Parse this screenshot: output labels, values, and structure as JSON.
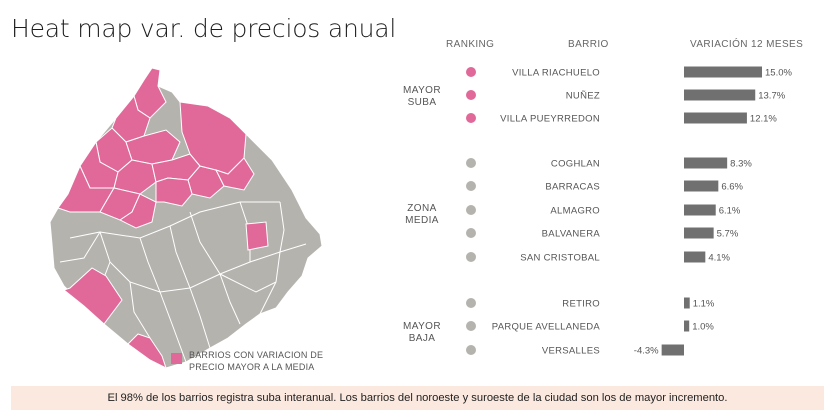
{
  "title": "Heat map var. de precios anual",
  "headers": {
    "ranking": "RANKING",
    "barrio": "BARRIO",
    "variacion": "VARIACIÓN 12 MESES"
  },
  "groups": [
    {
      "label_line1": "MAYOR",
      "label_line2": "SUBA"
    },
    {
      "label_line1": "ZONA",
      "label_line2": "MEDIA"
    },
    {
      "label_line1": "MAYOR",
      "label_line2": "BAJA"
    }
  ],
  "legend": {
    "text": "BARRIOS CON VARIACION DE PRECIO MAYOR A LA MEDIA"
  },
  "footer": "El 98% de los barrios registra suba interanual. Los barrios del noroeste y suroeste de la ciudad son los de mayor incremento.",
  "colors": {
    "highlight": "#e0699a",
    "neutral": "#b5b3ae",
    "bar": "#707070",
    "footer_bg": "#fbe9df"
  },
  "chart_data": {
    "type": "bar",
    "orientation": "horizontal",
    "xlabel": "VARIACIÓN 12 MESES",
    "unit": "%",
    "categories": [
      "VILLA RIACHUELO",
      "NUÑEZ",
      "VILLA PUEYRREDON",
      "COGHLAN",
      "BARRACAS",
      "ALMAGRO",
      "BALVANERA",
      "SAN CRISTOBAL",
      "RETIRO",
      "PARQUE AVELLANEDA",
      "VERSALLES"
    ],
    "values": [
      15.0,
      13.7,
      12.1,
      8.3,
      6.6,
      6.1,
      5.7,
      4.1,
      1.1,
      1.0,
      -4.3
    ],
    "value_labels": [
      "15.0%",
      "13.7%",
      "12.1%",
      "8.3%",
      "6.6%",
      "6.1%",
      "5.7%",
      "4.1%",
      "1.1%",
      "1.0%",
      "-4.3%"
    ],
    "group_of_item": [
      0,
      0,
      0,
      1,
      1,
      1,
      1,
      1,
      2,
      2,
      2
    ]
  }
}
